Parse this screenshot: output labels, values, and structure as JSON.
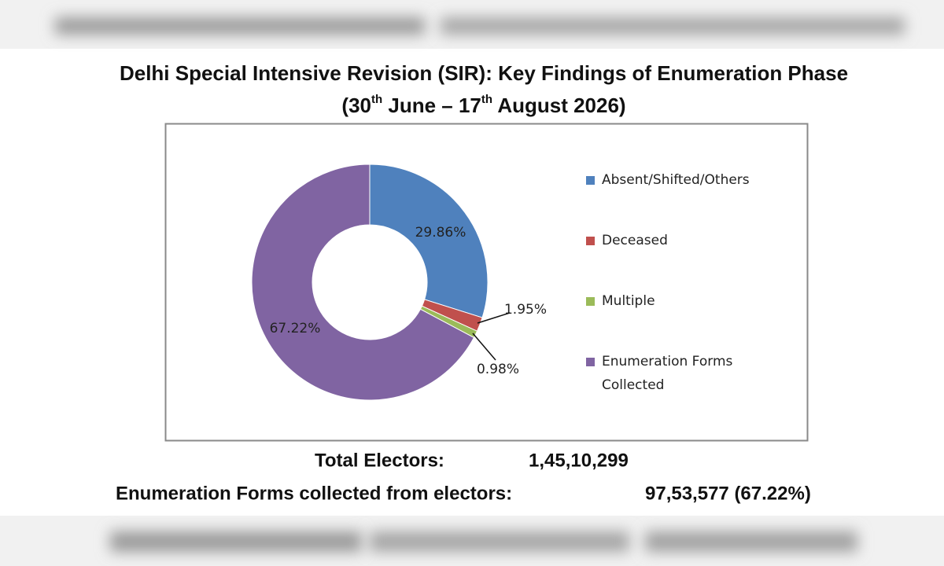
{
  "chart_data": {
    "type": "donut",
    "title": "Delhi Special Intensive Revision (SIR): Key Findings of Enumeration Phase",
    "subtitle": [
      "(30",
      "th",
      " June – 17",
      "th",
      " August 2026)"
    ],
    "categories": [
      "Absent/Shifted/Others",
      "Deceased",
      "Multiple",
      "Enumeration Forms Collected"
    ],
    "values": [
      29.86,
      1.95,
      0.98,
      67.22
    ],
    "value_labels": [
      "29.86%",
      "1.95%",
      "0.98%",
      "67.22%"
    ],
    "colors": [
      "#4f81bd",
      "#c0504d",
      "#9bbb59",
      "#8064a2"
    ],
    "legend": "right"
  },
  "footer": {
    "rows": [
      [
        "Total Electors:",
        "1,45,10,299"
      ],
      [
        "Enumeration Forms collected from electors:",
        "97,53,577 (67.22%)"
      ]
    ]
  }
}
